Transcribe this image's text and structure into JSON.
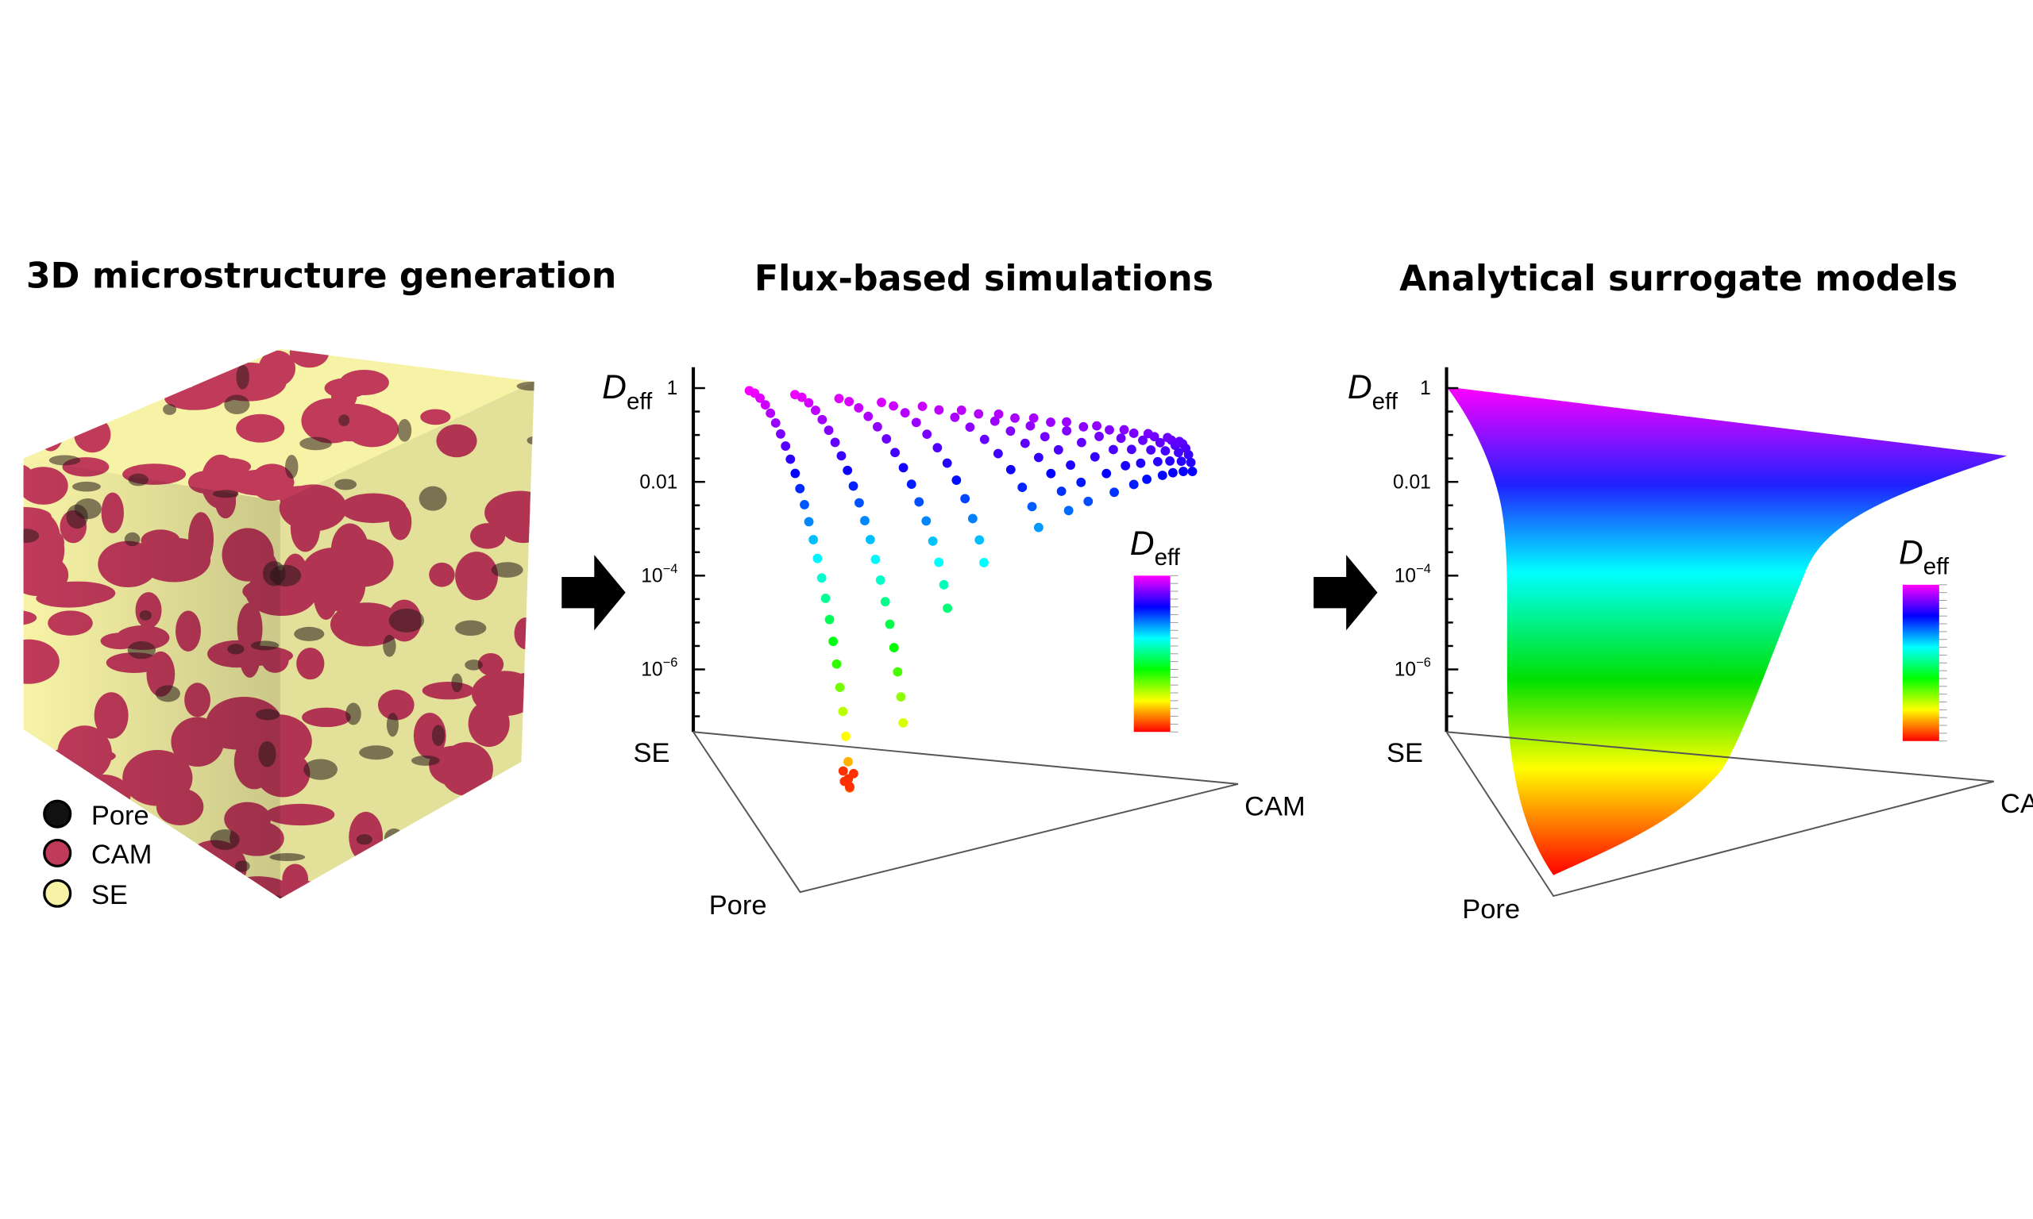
{
  "panels": [
    {
      "title": "3D microstructure generation",
      "legend": [
        {
          "label": "Pore",
          "color": "#111111"
        },
        {
          "label": "CAM",
          "color": "#c03a5a"
        },
        {
          "label": "SE",
          "color": "#f7f3a6"
        }
      ]
    },
    {
      "title": "Flux-based simulations"
    },
    {
      "title": "Analytical surrogate models"
    }
  ],
  "axis": {
    "y_symbol": "D",
    "y_subscript": "eff",
    "ticks": [
      {
        "base": "1",
        "exp": ""
      },
      {
        "base": "0.01",
        "exp": ""
      },
      {
        "base": "10",
        "exp": "−4"
      },
      {
        "base": "10",
        "exp": "−6"
      }
    ],
    "corners": {
      "se": "SE",
      "cam": "CAM",
      "pore": "Pore"
    }
  },
  "colorbar": {
    "symbol": "D",
    "subscript": "eff",
    "colors": [
      "#ff00ff",
      "#0000ff",
      "#00ffff",
      "#00ff00",
      "#ffff00",
      "#ff0000"
    ]
  }
}
